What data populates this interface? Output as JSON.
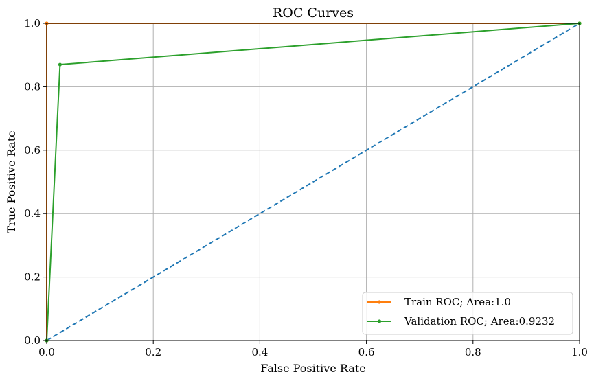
{
  "chart_data": {
    "type": "line",
    "title": "ROC Curves",
    "xlabel": "False Positive Rate",
    "ylabel": "True Positive Rate",
    "xlim": [
      0,
      1
    ],
    "ylim": [
      0,
      1
    ],
    "grid": true,
    "legend_position": "bottom-right",
    "xticks": [
      "0.0",
      "0.2",
      "0.4",
      "0.6",
      "0.8",
      "1.0"
    ],
    "yticks": [
      "0.0",
      "0.2",
      "0.4",
      "0.6",
      "0.8",
      "1.0"
    ],
    "reference_line": {
      "x": [
        0,
        1
      ],
      "y": [
        0,
        1
      ],
      "color": "#1f77b4",
      "style": "dashed"
    },
    "series": [
      {
        "name": "Train ROC; Area:1.0",
        "color": "#ff7f0e",
        "x": [
          0,
          0,
          1
        ],
        "y": [
          0,
          1,
          1
        ],
        "marker": "point"
      },
      {
        "name": "Validation ROC; Area:0.9232",
        "color": "#2ca02c",
        "x": [
          0,
          0.025,
          1
        ],
        "y": [
          0,
          0.87,
          1
        ],
        "marker": "point"
      }
    ]
  }
}
